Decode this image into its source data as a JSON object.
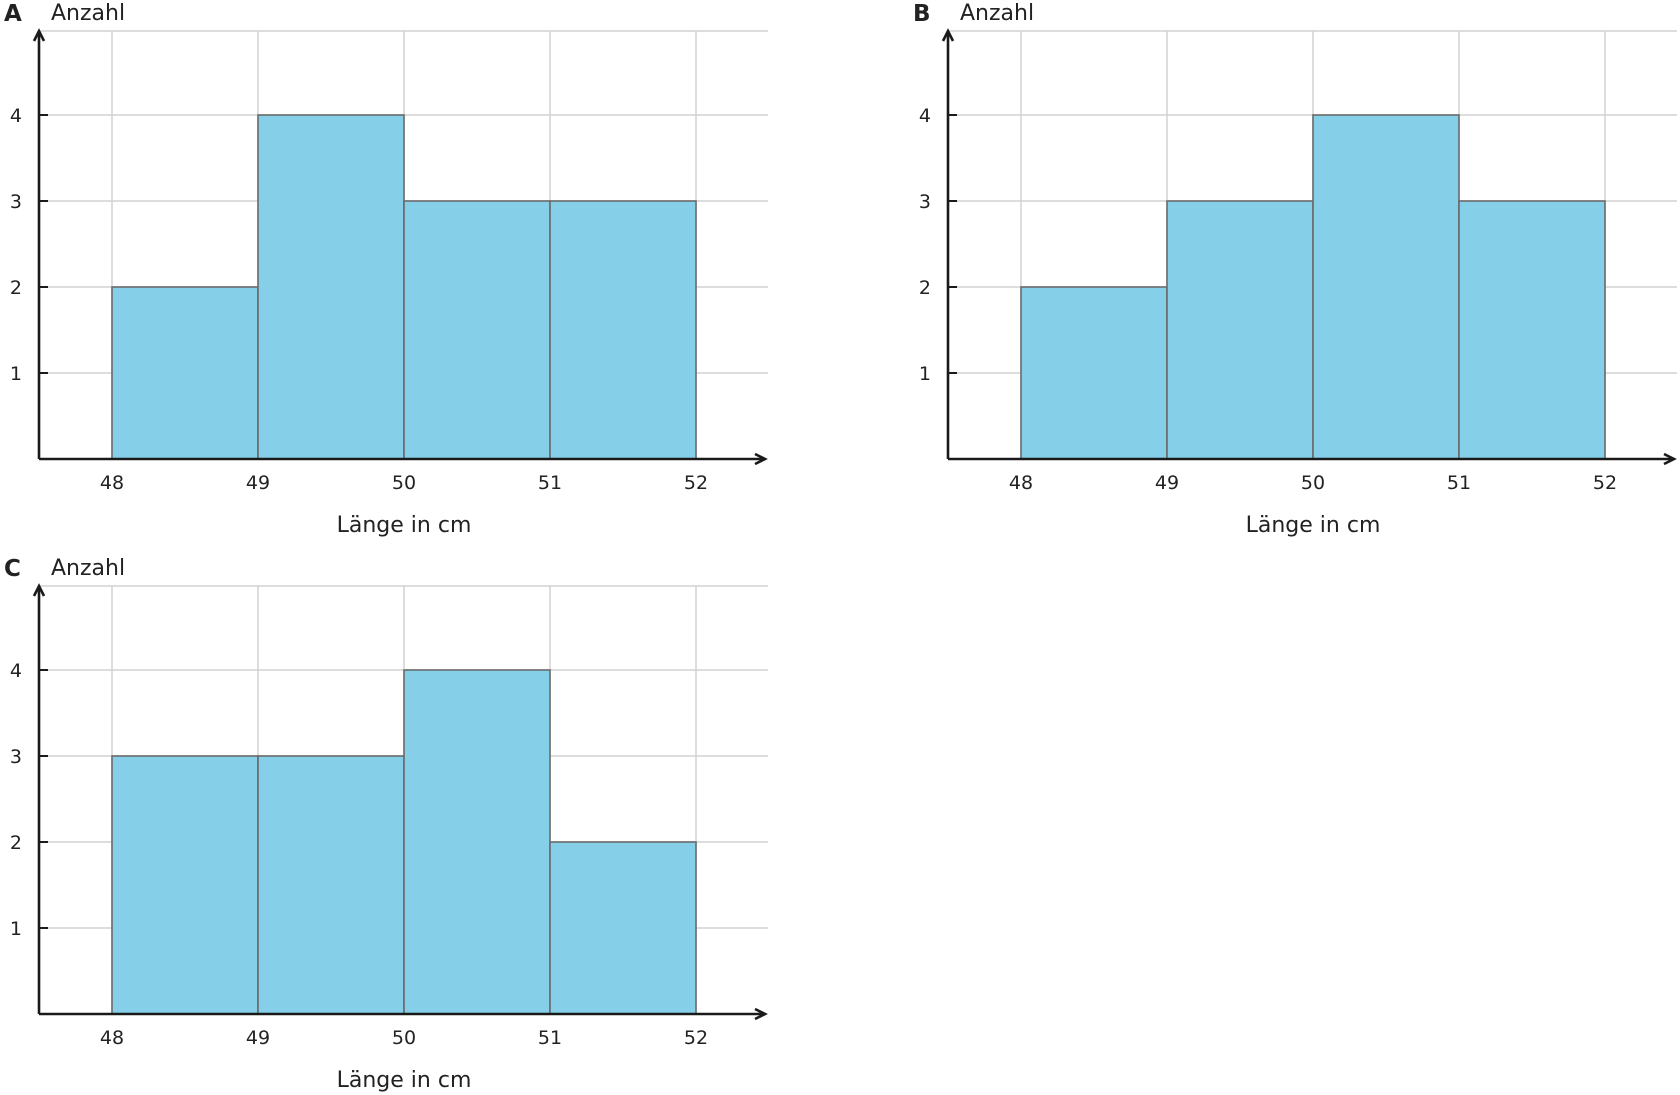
{
  "chart_data": [
    {
      "type": "bar",
      "panel_label": "A",
      "ylabel": "Anzahl",
      "xlabel": "Länge in cm",
      "bin_edges": [
        48,
        49,
        50,
        51,
        52
      ],
      "x_ticks": [
        "48",
        "49",
        "50",
        "51",
        "52"
      ],
      "y_ticks": [
        "1",
        "2",
        "3",
        "4"
      ],
      "values": [
        2,
        4,
        3,
        3
      ],
      "ylim": [
        0,
        5
      ],
      "grid": true,
      "bar_color": "#85cfe8"
    },
    {
      "type": "bar",
      "panel_label": "B",
      "ylabel": "Anzahl",
      "xlabel": "Länge in cm",
      "bin_edges": [
        48,
        49,
        50,
        51,
        52
      ],
      "x_ticks": [
        "48",
        "49",
        "50",
        "51",
        "52"
      ],
      "y_ticks": [
        "1",
        "2",
        "3",
        "4"
      ],
      "values": [
        2,
        3,
        4,
        3
      ],
      "ylim": [
        0,
        5
      ],
      "grid": true,
      "bar_color": "#85cfe8"
    },
    {
      "type": "bar",
      "panel_label": "C",
      "ylabel": "Anzahl",
      "xlabel": "Länge in cm",
      "bin_edges": [
        48,
        49,
        50,
        51,
        52
      ],
      "x_ticks": [
        "48",
        "49",
        "50",
        "51",
        "52"
      ],
      "y_ticks": [
        "1",
        "2",
        "3",
        "4"
      ],
      "values": [
        3,
        3,
        4,
        2
      ],
      "ylim": [
        0,
        5
      ],
      "grid": true,
      "bar_color": "#85cfe8"
    }
  ]
}
